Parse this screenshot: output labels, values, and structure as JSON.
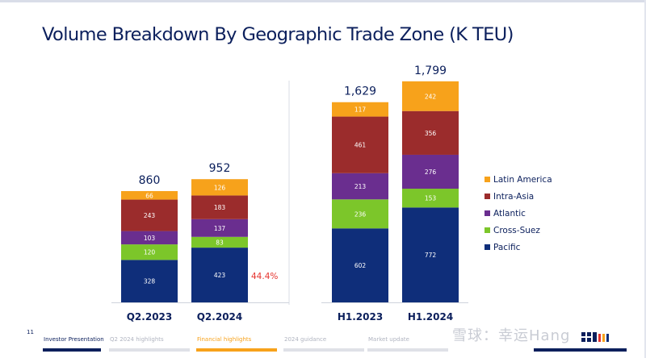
{
  "page": {
    "title": "Volume Breakdown By Geographic Trade Zone (K TEU)",
    "slide_number": "11",
    "growth_label": "44.4%"
  },
  "footer": {
    "items": [
      {
        "label": "Investor Presentation",
        "state": "active"
      },
      {
        "label": "Q2 2024 highlights",
        "state": "normal"
      },
      {
        "label": "Financial highlights",
        "state": "highlight"
      },
      {
        "label": "2024 guidance",
        "state": "normal"
      },
      {
        "label": "Market update",
        "state": "normal"
      },
      {
        "label": "",
        "state": "active"
      }
    ],
    "watermark": "雪球：幸运Hang"
  },
  "chart_data": {
    "type": "bar",
    "stacked": true,
    "title": "Volume Breakdown By Geographic Trade Zone (K TEU)",
    "unit": "K TEU",
    "categories": [
      "Q2.2023",
      "Q2.2024",
      "H1.2023",
      "H1.2024"
    ],
    "totals": [
      "860",
      "952",
      "1,629",
      "1,799"
    ],
    "series": [
      {
        "name": "Pacific",
        "color": "#0f2e7a",
        "values": [
          328,
          423,
          602,
          772
        ]
      },
      {
        "name": "Cross-Suez",
        "color": "#7cc62a",
        "values": [
          120,
          83,
          236,
          153
        ]
      },
      {
        "name": "Atlantic",
        "color": "#6a2e8f",
        "values": [
          103,
          137,
          213,
          276
        ]
      },
      {
        "name": "Intra-Asia",
        "color": "#9b2c2c",
        "values": [
          243,
          183,
          461,
          356
        ]
      },
      {
        "name": "Latin America",
        "color": "#f7a21b",
        "values": [
          66,
          126,
          117,
          242
        ]
      }
    ],
    "legend_order": [
      "Latin America",
      "Intra-Asia",
      "Atlantic",
      "Cross-Suez",
      "Pacific"
    ],
    "legend_position": "right",
    "annotation": {
      "text": "44.4%",
      "color": "#e5322d"
    },
    "grid": false
  }
}
